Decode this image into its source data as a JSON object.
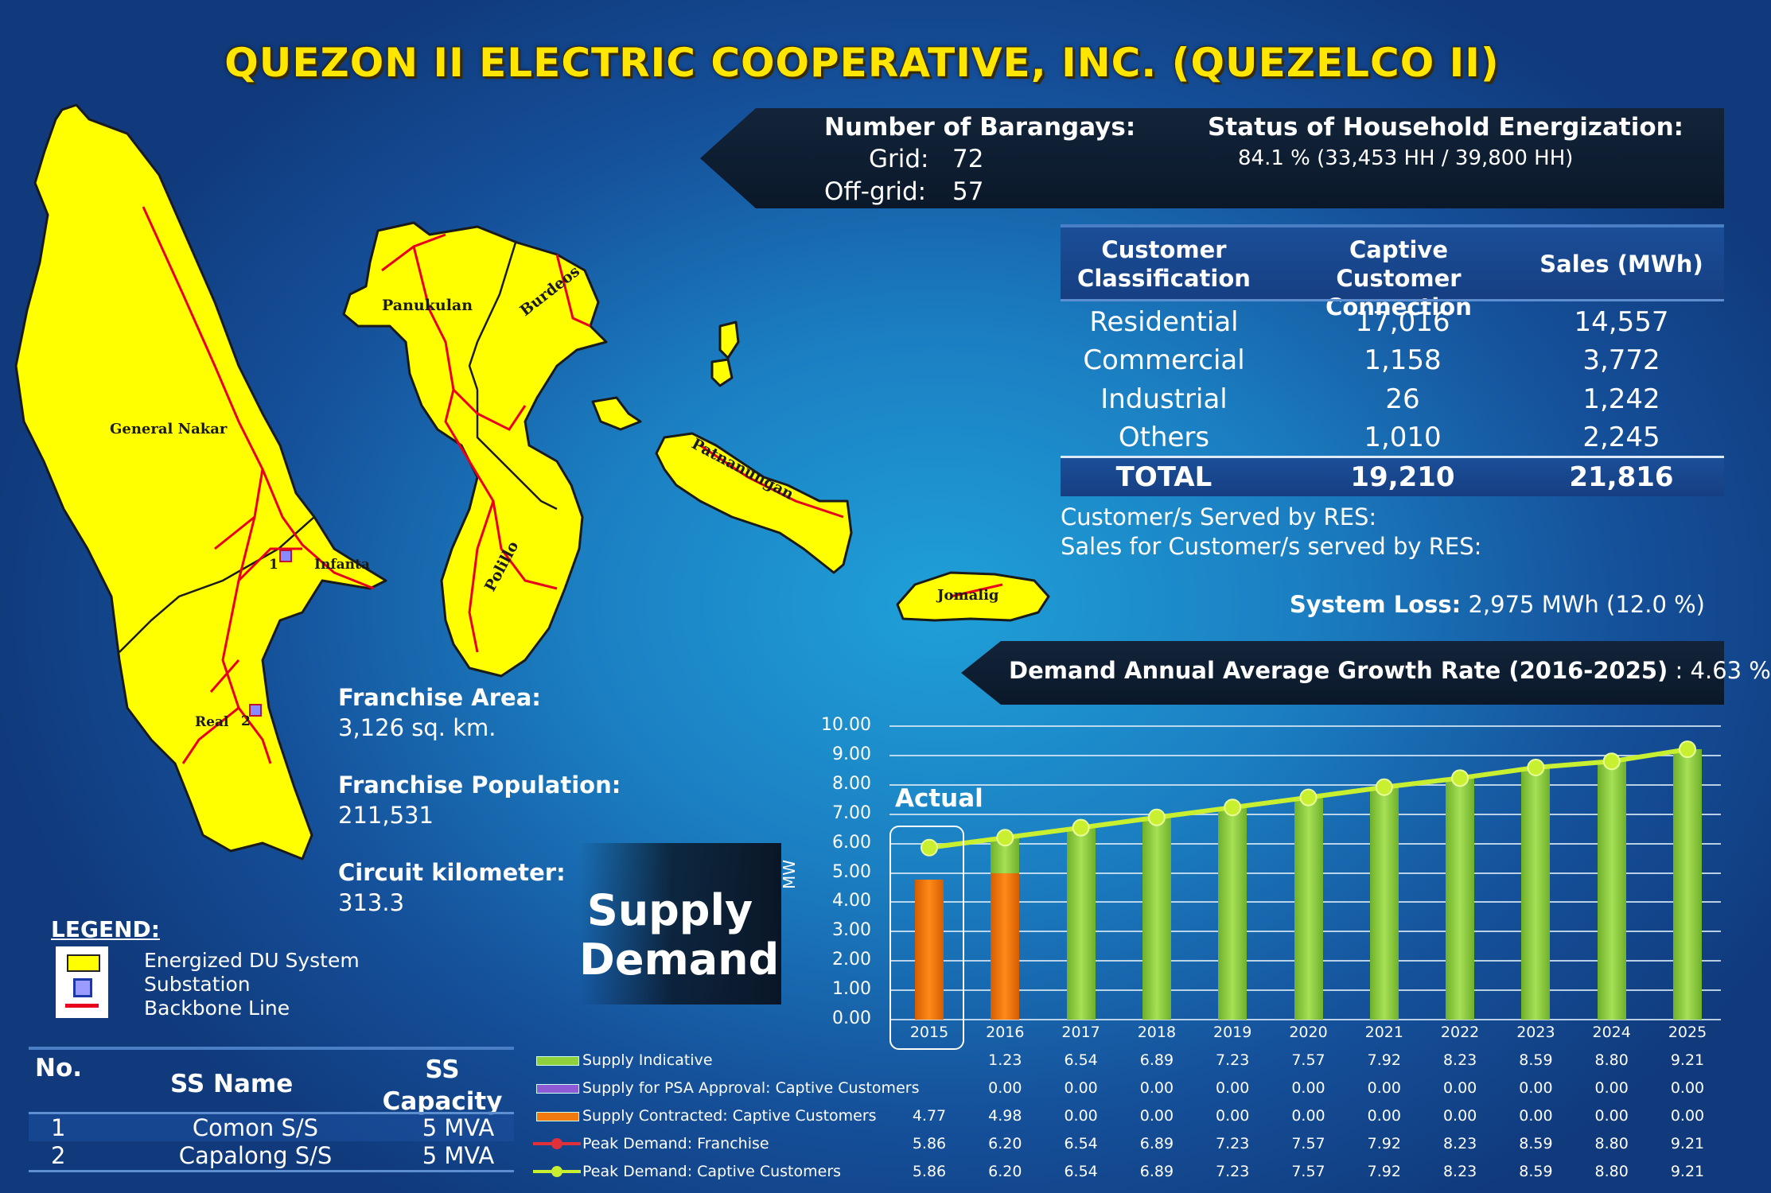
{
  "title": "QUEZON II ELECTRIC COOPERATIVE, INC. (QUEZELCO II)",
  "barangays": {
    "label": "Number of Barangays:",
    "grid_label": "Grid:",
    "grid_value": "72",
    "offgrid_label": "Off-grid:",
    "offgrid_value": "57"
  },
  "energization": {
    "label": "Status of Household Energization:",
    "value": "84.1 % (33,453 HH /  39,800 HH)"
  },
  "customer_table": {
    "headers": [
      "Customer Classification",
      "Captive Customer Connection",
      "Sales (MWh)"
    ],
    "header_lines": [
      [
        "Customer",
        "Classification"
      ],
      [
        "Captive Customer",
        "Connection"
      ],
      [
        "Sales (MWh)"
      ]
    ],
    "rows": [
      [
        "Residential",
        "17,016",
        "14,557"
      ],
      [
        "Commercial",
        "1,158",
        "3,772"
      ],
      [
        "Industrial",
        "26",
        "1,242"
      ],
      [
        "Others",
        "1,010",
        "2,245"
      ]
    ],
    "total": [
      "TOTAL",
      "19,210",
      "21,816"
    ]
  },
  "res": {
    "served_label": "Customer/s Served by RES:",
    "sales_label": "Sales for Customer/s served by RES:"
  },
  "system_loss": {
    "label": "System Loss:",
    "value": "2,975 MWh (12.0 %)"
  },
  "growth": {
    "label": "Demand Annual Average Growth Rate (2016-2025)",
    "value": ": 4.63 %"
  },
  "franchise": {
    "area_label": "Franchise Area:",
    "area_value": "3,126 sq. km.",
    "pop_label": "Franchise Population:",
    "pop_value": "211,531",
    "circuit_label": "Circuit kilometer:",
    "circuit_value": "313.3"
  },
  "map_labels": {
    "general_nakar": "General Nakar",
    "panukulan": "Panukulan",
    "burdeos": "Burdeos",
    "patnanungan": "Patnanungan",
    "infanta": "Infanta",
    "polillo": "Polillo",
    "jomalig": "Jomalig",
    "real": "Real",
    "ss1": "1",
    "ss2": "2"
  },
  "legend": {
    "title": "LEGEND:",
    "items": [
      "Energized DU System",
      "Substation",
      "Backbone Line"
    ]
  },
  "supply_demand": {
    "line1": "Supply",
    "line2": "Demand"
  },
  "ss_table": {
    "headers": {
      "no": "No.",
      "name": "SS Name",
      "cap1": "SS",
      "cap2": "Capacity"
    },
    "rows": [
      {
        "no": "1",
        "name": "Comon S/S",
        "cap": "5 MVA"
      },
      {
        "no": "2",
        "name": "Capalong S/S",
        "cap": "5 MVA"
      }
    ]
  },
  "colors": {
    "title": "#ffe600",
    "map_fill": "#ffff00",
    "backbone": "#e8001c",
    "supply_indicative": "#8ed13c",
    "supply_psa": "#8e5bd6",
    "supply_contracted": "#f07a10",
    "peak_franchise": "#e0303a",
    "peak_captive": "#c8f030"
  },
  "chart_data": {
    "type": "bar",
    "ylabel": "MW",
    "ylim": [
      0,
      10
    ],
    "yticks": [
      "0.00",
      "1.00",
      "2.00",
      "3.00",
      "4.00",
      "5.00",
      "6.00",
      "7.00",
      "8.00",
      "9.00",
      "10.00"
    ],
    "categories": [
      "2015",
      "2016",
      "2017",
      "2018",
      "2019",
      "2020",
      "2021",
      "2022",
      "2023",
      "2024",
      "2025"
    ],
    "annotation": "Actual",
    "series": [
      {
        "name": "Supply Indicative",
        "kind": "bar",
        "values": [
          null,
          1.23,
          6.54,
          6.89,
          7.23,
          7.57,
          7.92,
          8.23,
          8.59,
          8.8,
          9.21
        ],
        "labels": [
          "",
          "1.23",
          "6.54",
          "6.89",
          "7.23",
          "7.57",
          "7.92",
          "8.23",
          "8.59",
          "8.80",
          "9.21"
        ]
      },
      {
        "name": "Supply for PSA Approval:  Captive Customers",
        "kind": "bar",
        "values": [
          null,
          0,
          0,
          0,
          0,
          0,
          0,
          0,
          0,
          0,
          0
        ],
        "labels": [
          "",
          "0.00",
          "0.00",
          "0.00",
          "0.00",
          "0.00",
          "0.00",
          "0.00",
          "0.00",
          "0.00",
          "0.00"
        ]
      },
      {
        "name": "Supply Contracted:  Captive Customers",
        "kind": "bar",
        "values": [
          4.77,
          4.98,
          0,
          0,
          0,
          0,
          0,
          0,
          0,
          0,
          0
        ],
        "labels": [
          "4.77",
          "4.98",
          "0.00",
          "0.00",
          "0.00",
          "0.00",
          "0.00",
          "0.00",
          "0.00",
          "0.00",
          "0.00"
        ]
      },
      {
        "name": "Peak Demand:  Franchise",
        "kind": "line",
        "values": [
          5.86,
          6.2,
          6.54,
          6.89,
          7.23,
          7.57,
          7.92,
          8.23,
          8.59,
          8.8,
          9.21
        ],
        "labels": [
          "5.86",
          "6.20",
          "6.54",
          "6.89",
          "7.23",
          "7.57",
          "7.92",
          "8.23",
          "8.59",
          "8.80",
          "9.21"
        ]
      },
      {
        "name": "Peak Demand:  Captive Customers",
        "kind": "line",
        "values": [
          5.86,
          6.2,
          6.54,
          6.89,
          7.23,
          7.57,
          7.92,
          8.23,
          8.59,
          8.8,
          9.21
        ],
        "labels": [
          "5.86",
          "6.20",
          "6.54",
          "6.89",
          "7.23",
          "7.57",
          "7.92",
          "8.23",
          "8.59",
          "8.80",
          "9.21"
        ]
      }
    ]
  }
}
